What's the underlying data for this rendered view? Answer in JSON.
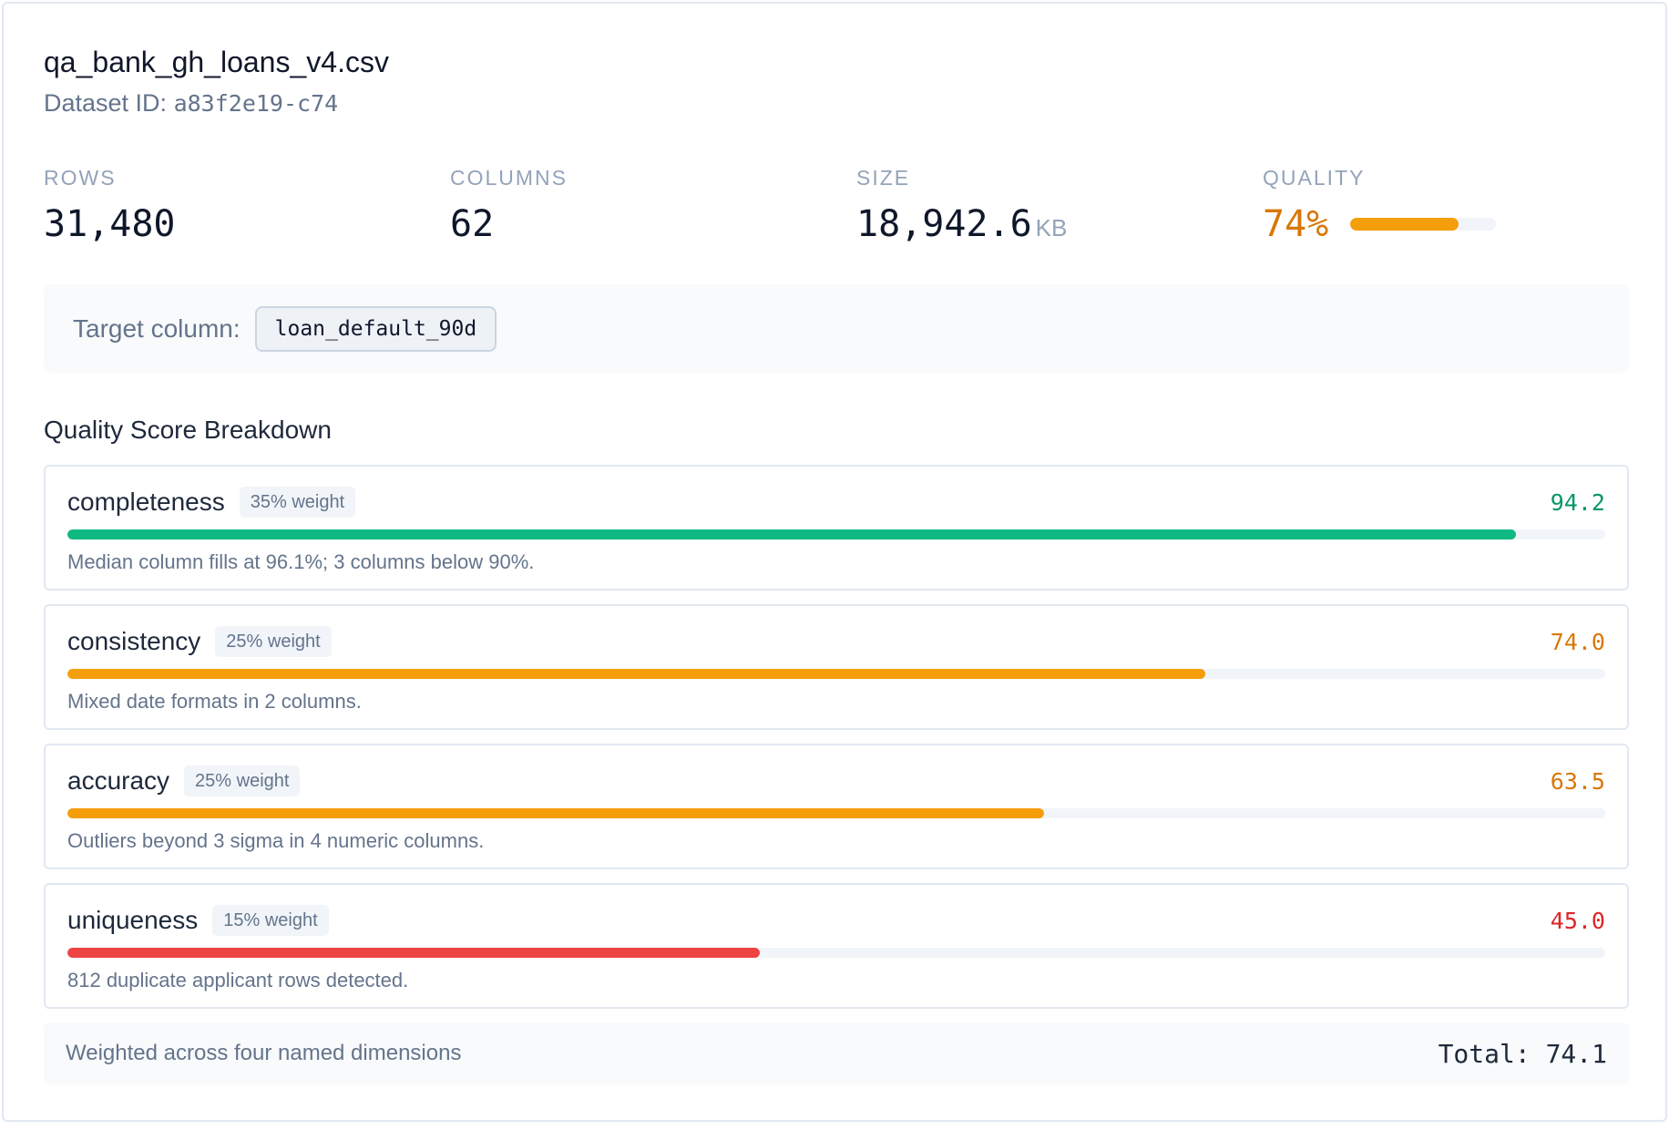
{
  "header": {
    "title": "qa_bank_gh_loans_v4.csv",
    "dataset_id_label": "Dataset ID:",
    "dataset_id": "a83f2e19-c74"
  },
  "stats": {
    "rows": {
      "label": "ROWS",
      "value": "31,480"
    },
    "columns": {
      "label": "COLUMNS",
      "value": "62"
    },
    "size": {
      "label": "SIZE",
      "value": "18,942.6",
      "unit": "KB"
    },
    "quality": {
      "label": "QUALITY",
      "value": "74%",
      "level": 0.74,
      "color": "#f59e0b",
      "text_color": "#d97706"
    }
  },
  "target": {
    "label": "Target column:",
    "column": "loan_default_90d"
  },
  "breakdown": {
    "title": "Quality Score Breakdown",
    "dimensions": [
      {
        "name": "completeness",
        "weight": "35% weight",
        "score": "94.2",
        "level": 0.942,
        "color": "#10b981",
        "text_color": "#059669",
        "note": "Median column fills at 96.1%; 3 columns below 90%."
      },
      {
        "name": "consistency",
        "weight": "25% weight",
        "score": "74.0",
        "level": 0.74,
        "color": "#f59e0b",
        "text_color": "#d97706",
        "note": "Mixed date formats in 2 columns."
      },
      {
        "name": "accuracy",
        "weight": "25% weight",
        "score": "63.5",
        "level": 0.635,
        "color": "#f59e0b",
        "text_color": "#d97706",
        "note": "Outliers beyond 3 sigma in 4 numeric columns."
      },
      {
        "name": "uniqueness",
        "weight": "15% weight",
        "score": "45.0",
        "level": 0.45,
        "color": "#ef4444",
        "text_color": "#dc2626",
        "note": "812 duplicate applicant rows detected."
      }
    ]
  },
  "footer": {
    "note": "Weighted across four named dimensions",
    "total": "Total: 74.1"
  }
}
